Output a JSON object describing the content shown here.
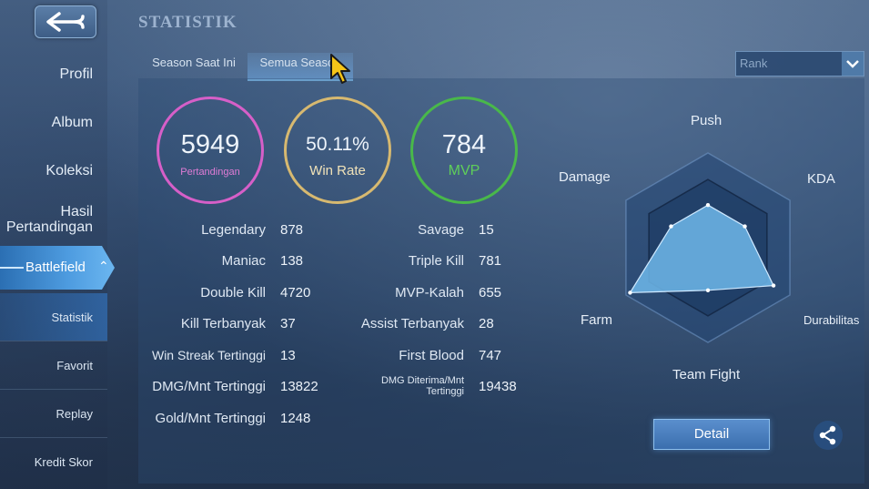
{
  "page": {
    "title": "STATISTIK"
  },
  "sidebar": {
    "items": [
      {
        "label": "Profil"
      },
      {
        "label": "Album"
      },
      {
        "label": "Koleksi"
      },
      {
        "label": "Hasil"
      },
      {
        "label": "Pertandingan"
      }
    ],
    "battlefield": {
      "label": "Battlefield"
    },
    "sub_items": [
      {
        "label": "Statistik"
      },
      {
        "label": "Favorit"
      },
      {
        "label": "Replay"
      },
      {
        "label": "Kredit Skor"
      }
    ]
  },
  "tabs": [
    {
      "label": "Season Saat Ini"
    },
    {
      "label": "Semua Season"
    }
  ],
  "rank_select": {
    "value": "Rank"
  },
  "summary": {
    "matches": {
      "value": "5949",
      "label": "Pertandingan",
      "color": "#d65fc8"
    },
    "win_rate": {
      "value": "50.11%",
      "label": "Win Rate",
      "color": "#d7b970"
    },
    "mvp": {
      "value": "784",
      "label": "MVP",
      "color": "#49b84a"
    }
  },
  "stats_left": [
    {
      "label": "Legendary",
      "value": "878"
    },
    {
      "label": "Maniac",
      "value": "138"
    },
    {
      "label": "Double Kill",
      "value": "4720"
    },
    {
      "label": "Kill Terbanyak",
      "value": "37"
    },
    {
      "label": "Win Streak Tertinggi",
      "value": "13"
    },
    {
      "label": "DMG/Mnt Tertinggi",
      "value": "13822"
    },
    {
      "label": "Gold/Mnt Tertinggi",
      "value": "1248"
    }
  ],
  "stats_right": [
    {
      "label": "Savage",
      "value": "15"
    },
    {
      "label": "Triple Kill",
      "value": "781"
    },
    {
      "label": "MVP-Kalah",
      "value": "655"
    },
    {
      "label": "Assist Terbanyak",
      "value": "28"
    },
    {
      "label": "First Blood",
      "value": "747"
    },
    {
      "label": "DMG Diterima/Mnt",
      "label2": "Tertinggi",
      "value": "19438"
    }
  ],
  "radar": {
    "axes": [
      "Push",
      "KDA",
      "Durabilitas",
      "Team Fight",
      "Farm",
      "Damage"
    ],
    "values": [
      0.45,
      0.45,
      0.8,
      0.45,
      0.95,
      0.45
    ]
  },
  "buttons": {
    "detail": "Detail"
  }
}
